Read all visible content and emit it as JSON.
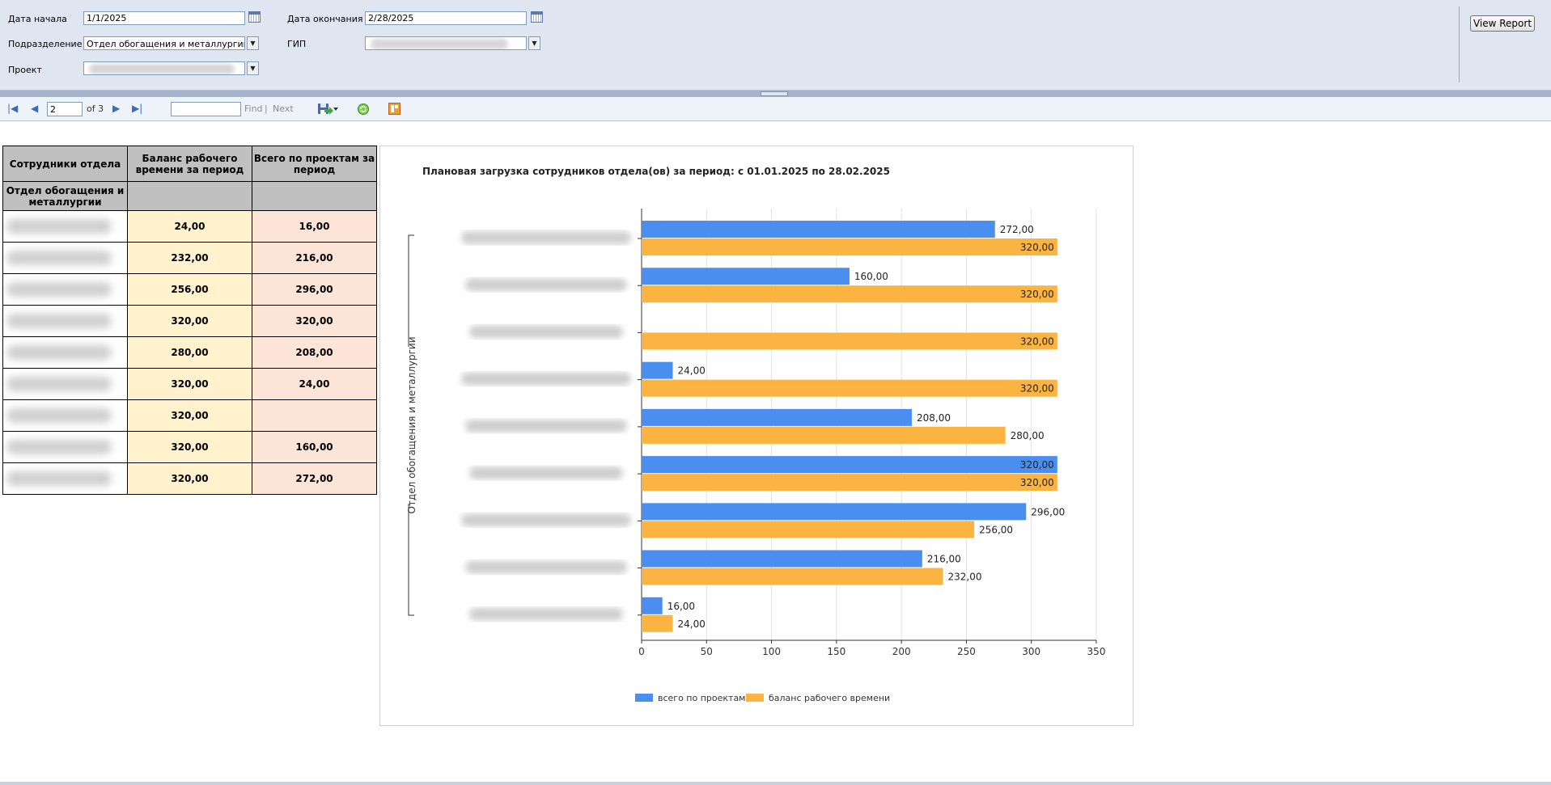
{
  "params": {
    "start_label": "Дата начала",
    "start_value": "1/1/2025",
    "end_label": "Дата окончания",
    "end_value": "2/28/2025",
    "dept_label": "Подразделение",
    "dept_value": "Отдел обогащения и металлургии",
    "gip_label": "ГИП",
    "project_label": "Проект",
    "view_report": "View Report"
  },
  "toolbar": {
    "page_value": "2",
    "of_pages": "of 3",
    "find_label": "Find",
    "separator": "|",
    "next_label": "Next"
  },
  "table": {
    "headers": [
      "Сотрудники отдела",
      "Баланс рабочего времени за период",
      "Всего по проектам за период"
    ],
    "department": "Отдел обогащения и металлургии",
    "rows": [
      {
        "balance": "24,00",
        "projects": "16,00"
      },
      {
        "balance": "232,00",
        "projects": "216,00"
      },
      {
        "balance": "256,00",
        "projects": "296,00"
      },
      {
        "balance": "320,00",
        "projects": "320,00"
      },
      {
        "balance": "280,00",
        "projects": "208,00"
      },
      {
        "balance": "320,00",
        "projects": "24,00"
      },
      {
        "balance": "320,00",
        "projects": ""
      },
      {
        "balance": "320,00",
        "projects": "160,00"
      },
      {
        "balance": "320,00",
        "projects": "272,00"
      }
    ]
  },
  "chart_data": {
    "type": "bar",
    "orientation": "horizontal",
    "title": "Плановая загрузка сотрудников отдела(ов) за период: с 01.01.2025 по 28.02.2025",
    "group_label": "Отдел обогащения и металлургии",
    "categories": [
      "",
      "",
      "",
      "",
      "",
      "",
      "",
      "",
      ""
    ],
    "series": [
      {
        "name": "всего по проектам",
        "color": "#4a8ef0",
        "values": [
          272,
          160,
          null,
          24,
          208,
          320,
          296,
          216,
          16
        ],
        "labels": [
          "272,00",
          "160,00",
          "",
          "24,00",
          "208,00",
          "320,00",
          "296,00",
          "216,00",
          "16,00"
        ]
      },
      {
        "name": "баланс рабочего времени",
        "color": "#fbb442",
        "values": [
          320,
          320,
          320,
          320,
          280,
          320,
          256,
          232,
          24
        ],
        "labels": [
          "320,00",
          "320,00",
          "320,00",
          "320,00",
          "280,00",
          "320,00",
          "256,00",
          "232,00",
          "24,00"
        ]
      }
    ],
    "xlim": [
      0,
      350
    ],
    "xticks": [
      "0",
      "50",
      "100",
      "150",
      "200",
      "250",
      "300",
      "350"
    ],
    "grid": true,
    "legend": "bottom"
  }
}
